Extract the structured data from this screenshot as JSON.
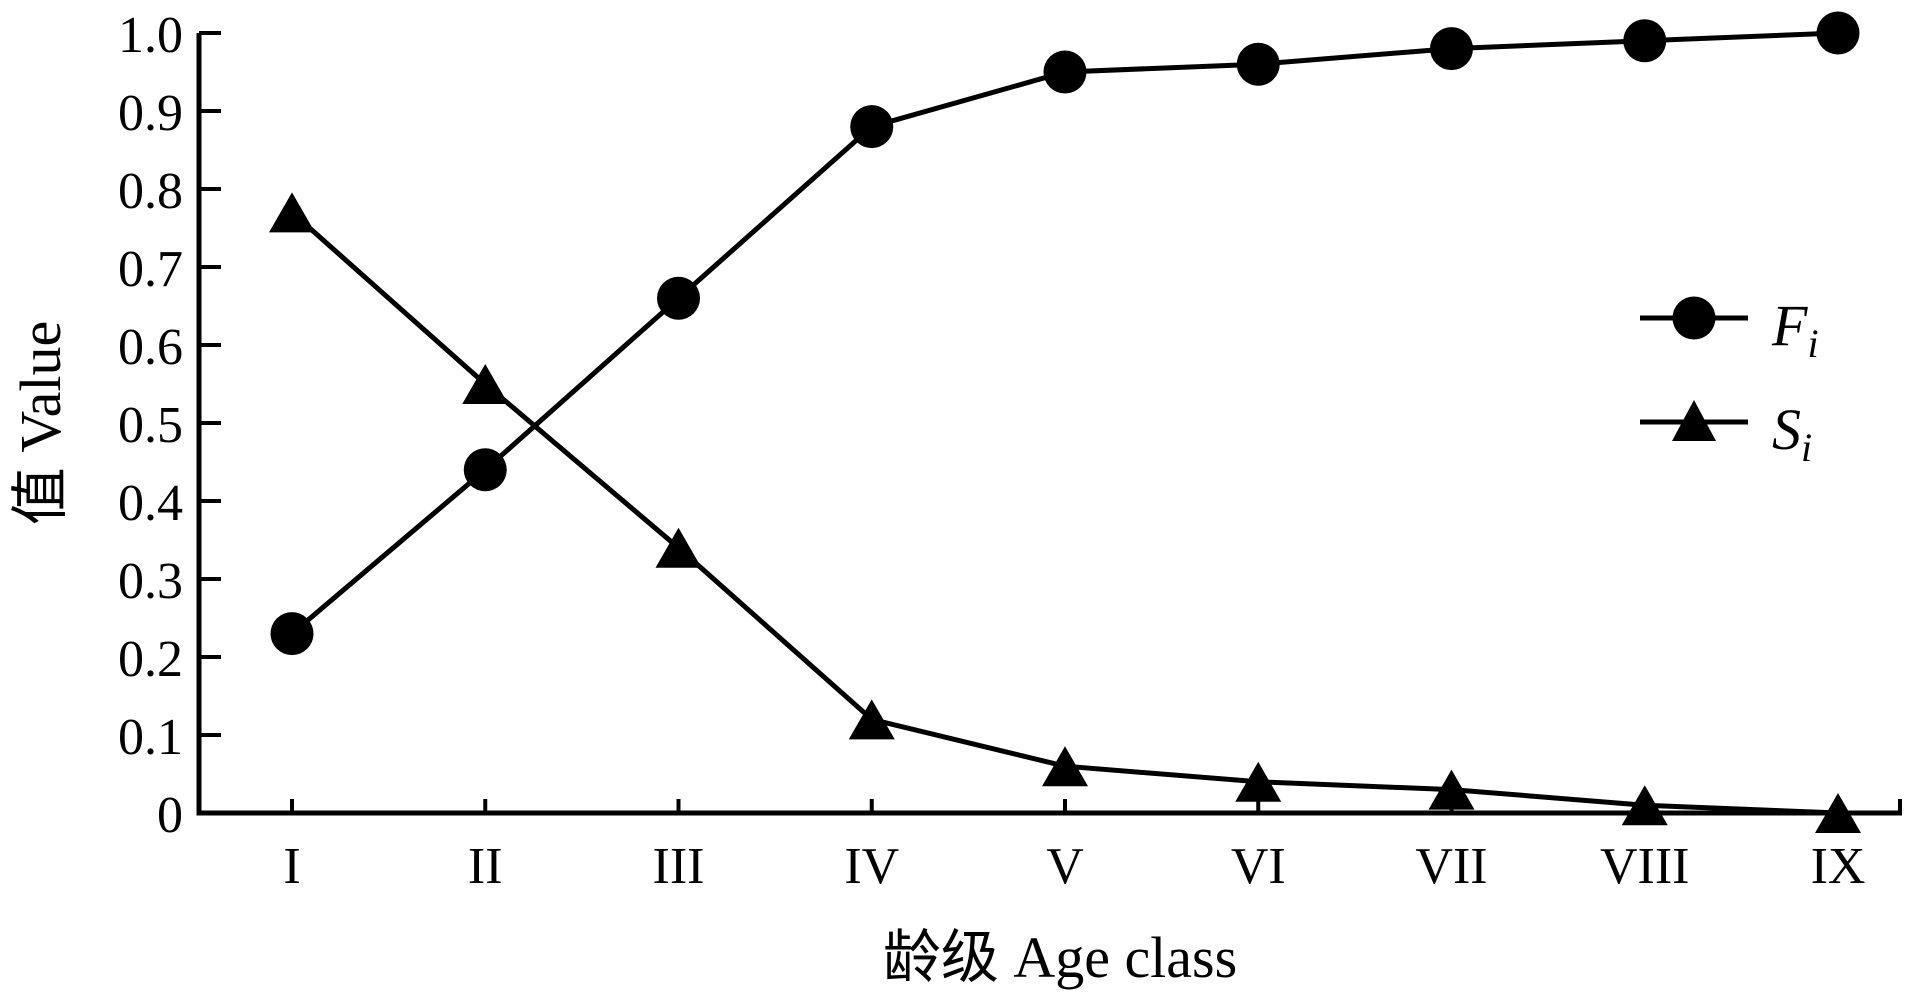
{
  "figure": {
    "background": "#ffffff",
    "ink_color": "#000000"
  },
  "chart_data": {
    "type": "line",
    "title": "",
    "categories": [
      "I",
      "II",
      "III",
      "IV",
      "V",
      "VI",
      "VII",
      "VIII",
      "IX"
    ],
    "series": [
      {
        "name": "Fi",
        "label_main": "F",
        "label_sub": "i",
        "marker": "circle",
        "color": "#000000",
        "values": [
          0.23,
          0.44,
          0.66,
          0.88,
          0.95,
          0.96,
          0.98,
          0.99,
          1.0
        ]
      },
      {
        "name": "Si",
        "label_main": "S",
        "label_sub": "i",
        "marker": "triangle",
        "color": "#000000",
        "values": [
          0.77,
          0.55,
          0.34,
          0.12,
          0.06,
          0.04,
          0.03,
          0.01,
          0.0
        ]
      }
    ],
    "xlabel": "龄级 Age class",
    "ylabel": "值 Value",
    "ylim": [
      0,
      1.0
    ],
    "ytick_step": 0.1,
    "ytick_labels": [
      "0",
      "0.1",
      "0.2",
      "0.3",
      "0.4",
      "0.5",
      "0.6",
      "0.7",
      "0.8",
      "0.9",
      "1.0"
    ],
    "grid": false,
    "ticks_direction": "in",
    "legend_position": "right-middle"
  }
}
